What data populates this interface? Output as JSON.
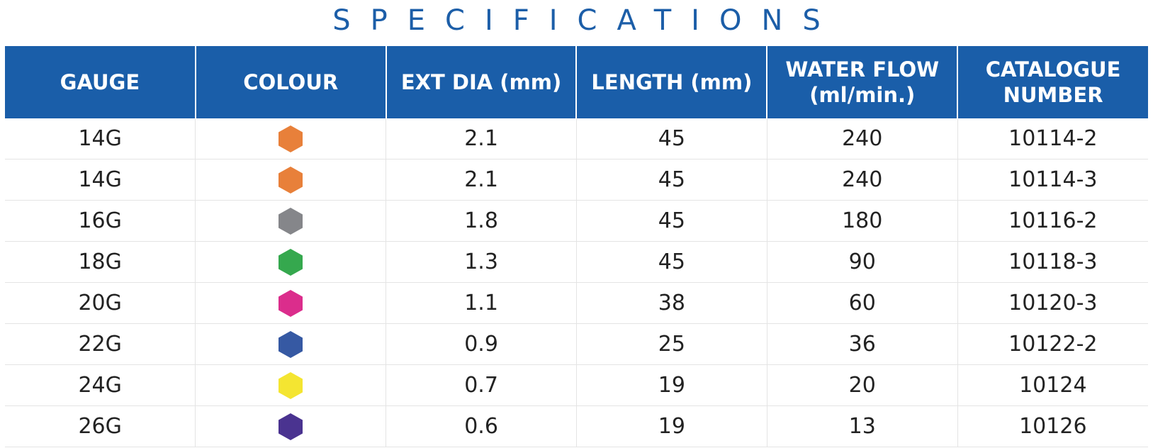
{
  "title": "SPECIFICATIONS",
  "table": {
    "headers": [
      "GAUGE",
      "COLOUR",
      "EXT DIA (mm)",
      "LENGTH (mm)",
      "WATER FLOW\n(ml/min.)",
      "CATALOGUE\nNUMBER"
    ],
    "rows": [
      {
        "gauge": "14G",
        "color": "#e8803a",
        "ext_dia": "2.1",
        "length": "45",
        "water_flow": "240",
        "catalogue": "10114-2"
      },
      {
        "gauge": "14G",
        "color": "#e8803a",
        "ext_dia": "2.1",
        "length": "45",
        "water_flow": "240",
        "catalogue": "10114-3"
      },
      {
        "gauge": "16G",
        "color": "#85868a",
        "ext_dia": "1.8",
        "length": "45",
        "water_flow": "180",
        "catalogue": "10116-2"
      },
      {
        "gauge": "18G",
        "color": "#35a84e",
        "ext_dia": "1.3",
        "length": "45",
        "water_flow": "90",
        "catalogue": "10118-3"
      },
      {
        "gauge": "20G",
        "color": "#db2d8c",
        "ext_dia": "1.1",
        "length": "38",
        "water_flow": "60",
        "catalogue": "10120-3"
      },
      {
        "gauge": "22G",
        "color": "#3659a3",
        "ext_dia": "0.9",
        "length": "25",
        "water_flow": "36",
        "catalogue": "10122-2"
      },
      {
        "gauge": "24G",
        "color": "#f4e531",
        "ext_dia": "0.7",
        "length": "19",
        "water_flow": "20",
        "catalogue": "10124"
      },
      {
        "gauge": "26G",
        "color": "#4a3390",
        "ext_dia": "0.6",
        "length": "19",
        "water_flow": "13",
        "catalogue": "10126"
      }
    ]
  }
}
